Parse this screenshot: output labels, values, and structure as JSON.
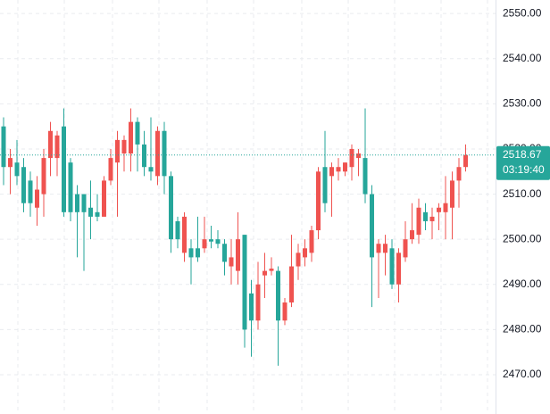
{
  "chart_data": {
    "type": "candlestick",
    "open": [
      2525,
      2516,
      2517,
      2516,
      2513,
      2507,
      2510,
      2518,
      2518,
      2525,
      2517,
      2510,
      2510,
      2507,
      2506,
      2505,
      2513,
      2517,
      2519,
      2519,
      2526,
      2521,
      2516,
      2514,
      2524,
      2514,
      2504,
      2497,
      2498,
      2498,
      2498,
      2500,
      2500,
      2499,
      2494,
      2493,
      2501,
      2488,
      2482,
      2492,
      2493,
      2493,
      2482,
      2486,
      2494,
      2496,
      2497,
      2502,
      2516,
      2514,
      2515,
      2515,
      2516,
      2518,
      2518,
      2510,
      2497,
      2497,
      2498,
      2490,
      2496,
      2500,
      2501,
      2506,
      2504,
      2506,
      2506,
      2507,
      2513,
      2516
    ],
    "high": [
      2527,
      2520,
      2522,
      2518,
      2515,
      2514,
      2520,
      2526,
      2524,
      2529,
      2518,
      2512,
      2510,
      2513,
      2510,
      2514,
      2520,
      2524,
      2523,
      2529,
      2527,
      2524,
      2527,
      2525,
      2526,
      2515,
      2505,
      2506,
      2500,
      2505,
      2505,
      2503,
      2502,
      2500,
      2500,
      2506,
      2501,
      2491,
      2495,
      2497,
      2496,
      2494,
      2487,
      2501,
      2499,
      2500,
      2503,
      2516,
      2524,
      2517,
      2518,
      2517,
      2521,
      2520,
      2529,
      2512,
      2500,
      2501,
      2500,
      2498,
      2504,
      2508,
      2509,
      2508,
      2507,
      2508,
      2514,
      2515,
      2518,
      2521
    ],
    "low": [
      2512,
      2510,
      2512,
      2506,
      2505,
      2503,
      2505,
      2514,
      2514,
      2505,
      2504,
      2496,
      2493,
      2500,
      2504,
      2505,
      2512,
      2505,
      2515,
      2515,
      2515,
      2514,
      2513,
      2512,
      2510,
      2497,
      2498,
      2495,
      2490,
      2495,
      2497,
      2498,
      2498,
      2492,
      2490,
      2490,
      2476,
      2474,
      2480,
      2487,
      2492,
      2472,
      2481,
      2485,
      2491,
      2494,
      2495,
      2500,
      2506,
      2505,
      2513,
      2514,
      2513,
      2514,
      2508,
      2485,
      2487,
      2492,
      2489,
      2486,
      2495,
      2499,
      2499,
      2502,
      2500,
      2502,
      2500,
      2500,
      2507,
      2515
    ],
    "close": [
      2516,
      2518,
      2514,
      2508,
      2508,
      2511,
      2518,
      2524,
      2523,
      2506,
      2506,
      2506,
      2506,
      2505,
      2505,
      2513,
      2518,
      2522,
      2522,
      2526,
      2521,
      2516,
      2515,
      2524,
      2514,
      2500,
      2500,
      2505,
      2496,
      2496,
      2500,
      2499.5,
      2499,
      2495,
      2496,
      2500,
      2480,
      2482,
      2490,
      2493,
      2493.5,
      2482,
      2486,
      2494,
      2497,
      2498,
      2502,
      2515,
      2508,
      2516,
      2516,
      2517,
      2520,
      2519,
      2510,
      2496,
      2499,
      2499,
      2490,
      2497,
      2500,
      2502,
      2507,
      2504,
      2505,
      2507,
      2508,
      2513,
      2516,
      2518.67
    ],
    "up_color": "#ef5350",
    "down_color": "#26a69a",
    "ylim": [
      2461.3,
      2553.0
    ],
    "yticks": [
      {
        "value": 2470,
        "label": "2470.00"
      },
      {
        "value": 2480,
        "label": "2480.00"
      },
      {
        "value": 2490,
        "label": "2490.00"
      },
      {
        "value": 2500,
        "label": "2500.00"
      },
      {
        "value": 2510,
        "label": "2510.00"
      },
      {
        "value": 2520,
        "label": "2520.00"
      },
      {
        "value": 2530,
        "label": "2530.00"
      },
      {
        "value": 2540,
        "label": "2540.00"
      },
      {
        "value": 2550,
        "label": "2550.00"
      }
    ],
    "grid": true,
    "last_price": 2518.67,
    "last_price_color": "#26a69a",
    "countdown": "03:19:40"
  }
}
